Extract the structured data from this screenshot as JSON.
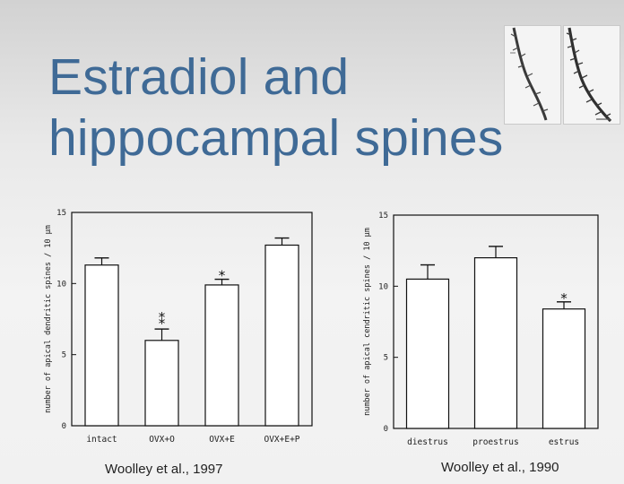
{
  "slide": {
    "title_line1": "Estradiol and",
    "title_line2": "hippocampal spines",
    "colors": {
      "title": "#3f6a96",
      "bar_fill": "#ffffff",
      "ink": "#111111"
    }
  },
  "images": [
    {
      "name": "dendrite-micrograph-left",
      "description": "dendrite micrograph"
    },
    {
      "name": "dendrite-micrograph-right",
      "description": "dendrite micrograph"
    }
  ],
  "chart_data": [
    {
      "type": "bar",
      "caption": "Woolley et al., 1997",
      "ylabel": "number of apical dendritic spines / 10 µm",
      "ylim": [
        0,
        15
      ],
      "yticks": [
        0,
        5,
        10,
        15
      ],
      "categories": [
        "intact",
        "OVX+O",
        "OVX+E",
        "OVX+E+P"
      ],
      "values": [
        11.3,
        6.0,
        9.9,
        12.7
      ],
      "errors": [
        0.5,
        0.8,
        0.4,
        0.5
      ],
      "annotations": [
        "",
        "**",
        "*",
        ""
      ]
    },
    {
      "type": "bar",
      "caption": "Woolley et al., 1990",
      "ylabel": "number of apical cendritic spines / 10 µm",
      "ylim": [
        0,
        15
      ],
      "yticks": [
        0,
        5,
        10,
        15
      ],
      "categories": [
        "diestrus",
        "proestrus",
        "estrus"
      ],
      "values": [
        10.5,
        12.0,
        8.4
      ],
      "errors": [
        1.0,
        0.8,
        0.5
      ],
      "annotations": [
        "",
        "",
        "*"
      ]
    }
  ]
}
